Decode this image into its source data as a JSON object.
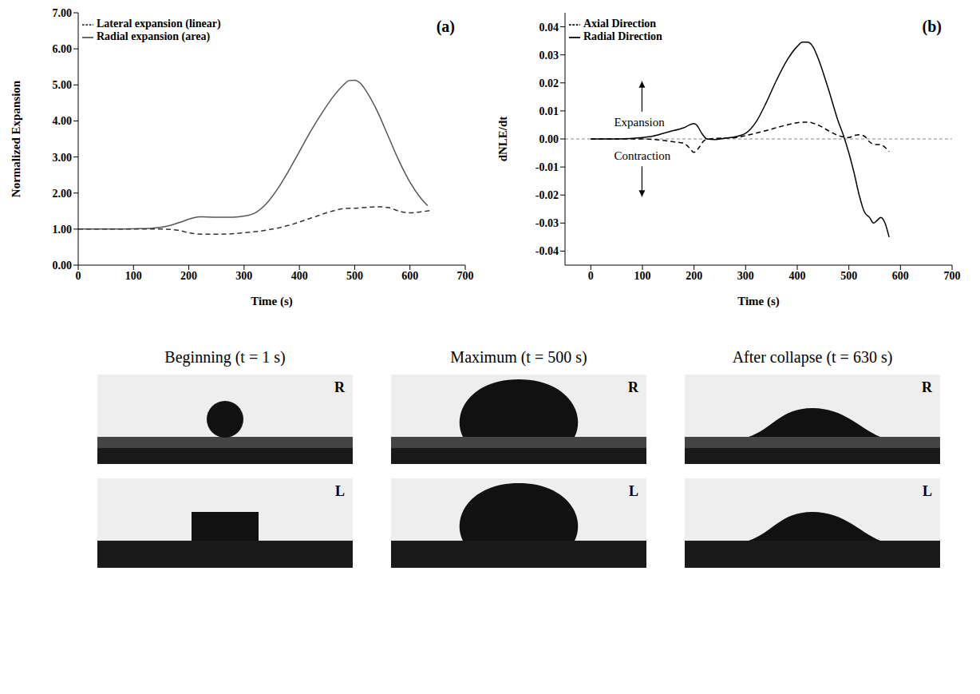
{
  "chart_data": [
    {
      "type": "line",
      "panel": "(a)",
      "x_label": "Time (s)",
      "y_label": "Normalized Expansion",
      "xlim": [
        0,
        700
      ],
      "xticks": [
        0,
        100,
        200,
        300,
        400,
        500,
        600,
        700
      ],
      "ylim": [
        0,
        7
      ],
      "yticks": [
        {
          "value": 0,
          "label": "0.00"
        },
        {
          "value": 1,
          "label": "1.00"
        },
        {
          "value": 2,
          "label": "2.00"
        },
        {
          "value": 3,
          "label": "3.00"
        },
        {
          "value": 4,
          "label": "4.00"
        },
        {
          "value": 5,
          "label": "5.00"
        },
        {
          "value": 6,
          "label": "6.00"
        },
        {
          "value": 7,
          "label": "7.00"
        }
      ],
      "legend": "top-left",
      "series": [
        {
          "name": "Radial expansion (area)",
          "color": "#555555",
          "line_style": "solid",
          "x": [
            0,
            50,
            100,
            130,
            150,
            170,
            190,
            210,
            220,
            250,
            280,
            300,
            320,
            340,
            360,
            380,
            400,
            420,
            440,
            460,
            480,
            490,
            500,
            510,
            520,
            540,
            560,
            580,
            600,
            620,
            632
          ],
          "values": [
            1.0,
            1.0,
            1.01,
            1.02,
            1.05,
            1.12,
            1.22,
            1.32,
            1.34,
            1.33,
            1.33,
            1.36,
            1.45,
            1.7,
            2.1,
            2.6,
            3.15,
            3.7,
            4.2,
            4.65,
            5.0,
            5.12,
            5.13,
            5.05,
            4.85,
            4.3,
            3.6,
            2.9,
            2.3,
            1.85,
            1.65
          ]
        },
        {
          "name": "Lateral expansion (linear)",
          "color": "#333333",
          "line_style": "dashed",
          "x": [
            0,
            100,
            150,
            180,
            200,
            220,
            260,
            300,
            340,
            380,
            420,
            460,
            480,
            500,
            520,
            540,
            560,
            580,
            600,
            620,
            640
          ],
          "values": [
            1.0,
            1.0,
            1.0,
            0.97,
            0.9,
            0.86,
            0.86,
            0.9,
            0.97,
            1.1,
            1.3,
            1.5,
            1.57,
            1.58,
            1.6,
            1.62,
            1.6,
            1.5,
            1.45,
            1.48,
            1.52
          ]
        }
      ]
    },
    {
      "type": "line",
      "panel": "(b)",
      "x_label": "Time (s)",
      "y_label": "dNLE/dt",
      "xlim": [
        -50,
        700
      ],
      "xticks": [
        0,
        100,
        200,
        300,
        400,
        500,
        600,
        700
      ],
      "ylim": [
        -0.045,
        0.045
      ],
      "yticks": [
        -0.04,
        -0.03,
        -0.02,
        -0.01,
        {
          "value": 0,
          "label": "0.00"
        },
        0.01,
        0.02,
        0.03,
        0.04
      ],
      "legend": "top-left",
      "annotations": [
        {
          "text": "Expansion",
          "x": 45,
          "y": 0.0035
        },
        {
          "text": "Contraction",
          "x": 45,
          "y": -0.0035
        }
      ],
      "series": [
        {
          "name": "Radial Direction",
          "color": "#000000",
          "line_style": "solid",
          "x": [
            0,
            50,
            100,
            120,
            150,
            180,
            200,
            205,
            215,
            225,
            240,
            260,
            280,
            300,
            320,
            340,
            360,
            380,
            400,
            410,
            420,
            430,
            440,
            460,
            480,
            490,
            500,
            510,
            520,
            530,
            540,
            548,
            555,
            562,
            570,
            578
          ],
          "values": [
            0,
            0,
            0.0005,
            0.001,
            0.0025,
            0.004,
            0.0055,
            0.005,
            0.002,
            0.0,
            -0.0002,
            0.0003,
            0.0008,
            0.002,
            0.006,
            0.013,
            0.021,
            0.028,
            0.033,
            0.0345,
            0.0345,
            0.033,
            0.029,
            0.018,
            0.006,
            0.001,
            -0.005,
            -0.012,
            -0.02,
            -0.026,
            -0.028,
            -0.03,
            -0.029,
            -0.028,
            -0.03,
            -0.035
          ]
        },
        {
          "name": "Axial Direction",
          "color": "#000000",
          "line_style": "dashed",
          "x": [
            0,
            100,
            140,
            160,
            180,
            190,
            200,
            210,
            220,
            240,
            280,
            300,
            340,
            380,
            410,
            420,
            440,
            460,
            480,
            500,
            510,
            520,
            530,
            540,
            550,
            560,
            570,
            578
          ],
          "values": [
            0,
            0,
            -0.0005,
            -0.001,
            -0.0015,
            -0.003,
            -0.0048,
            -0.003,
            -0.0005,
            0.0002,
            0.0005,
            0.0012,
            0.003,
            0.005,
            0.006,
            0.006,
            0.005,
            0.003,
            0.0012,
            0.0005,
            0.0012,
            0.0015,
            0.001,
            -0.001,
            -0.002,
            -0.002,
            -0.003,
            -0.0045
          ]
        }
      ]
    }
  ],
  "photos": {
    "columns": [
      "Beginning (t = 1 s)",
      "Maximum (t = 500 s)",
      "After collapse (t = 630 s)"
    ],
    "rows": [
      "R",
      "L"
    ]
  }
}
